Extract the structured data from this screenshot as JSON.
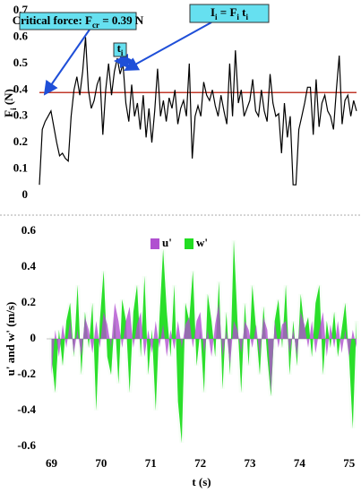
{
  "chart_data": [
    {
      "type": "line",
      "ylabel": [
        "F",
        "i",
        " (N)"
      ],
      "annotations": [
        [
          "Critical force: F",
          "cr",
          " = 0.39 N"
        ],
        [
          "I",
          "i",
          " = F",
          "i",
          " t",
          "i"
        ],
        [
          "t",
          "i"
        ]
      ],
      "threshold": 0.39,
      "threshold_color": "#c0392b",
      "color": "#000000",
      "xlim": [
        68.6,
        75.2
      ],
      "ylim": [
        0,
        0.7
      ],
      "yticks": [
        0,
        0.1,
        0.2,
        0.3,
        0.4,
        0.5,
        0.6,
        0.7
      ],
      "x": [
        68.6,
        68.66,
        68.72,
        68.78,
        68.84,
        68.9,
        68.96,
        69.02,
        69.08,
        69.14,
        69.2,
        69.26,
        69.32,
        69.38,
        69.44,
        69.5,
        69.56,
        69.62,
        69.68,
        69.74,
        69.8,
        69.86,
        69.92,
        69.98,
        70.04,
        70.1,
        70.16,
        70.22,
        70.28,
        70.34,
        70.4,
        70.46,
        70.52,
        70.58,
        70.64,
        70.7,
        70.76,
        70.82,
        70.88,
        70.94,
        71,
        71.06,
        71.12,
        71.18,
        71.24,
        71.3,
        71.36,
        71.42,
        71.48,
        71.54,
        71.6,
        71.66,
        71.72,
        71.78,
        71.84,
        71.9,
        71.96,
        72.02,
        72.08,
        72.14,
        72.2,
        72.26,
        72.32,
        72.38,
        72.44,
        72.5,
        72.56,
        72.62,
        72.68,
        72.74,
        72.8,
        72.86,
        72.92,
        72.98,
        73.04,
        73.1,
        73.16,
        73.22,
        73.28,
        73.34,
        73.4,
        73.46,
        73.52,
        73.58,
        73.64,
        73.7,
        73.76,
        73.82,
        73.88,
        73.94,
        74,
        74.06,
        74.12,
        74.18,
        74.24,
        74.3,
        74.36,
        74.42,
        74.48,
        74.54,
        74.6,
        74.66,
        74.72,
        74.78,
        74.84,
        74.9,
        74.96,
        75.02,
        75.08,
        75.14,
        75.2
      ],
      "values": [
        0.04,
        0.25,
        0.28,
        0.3,
        0.32,
        0.26,
        0.2,
        0.15,
        0.16,
        0.14,
        0.13,
        0.3,
        0.4,
        0.45,
        0.38,
        0.47,
        0.6,
        0.4,
        0.33,
        0.36,
        0.42,
        0.45,
        0.23,
        0.4,
        0.5,
        0.38,
        0.47,
        0.52,
        0.46,
        0.5,
        0.35,
        0.28,
        0.42,
        0.3,
        0.35,
        0.25,
        0.38,
        0.22,
        0.33,
        0.2,
        0.32,
        0.48,
        0.3,
        0.36,
        0.28,
        0.37,
        0.33,
        0.4,
        0.27,
        0.33,
        0.36,
        0.3,
        0.5,
        0.14,
        0.3,
        0.34,
        0.3,
        0.43,
        0.38,
        0.36,
        0.4,
        0.34,
        0.3,
        0.38,
        0.32,
        0.27,
        0.5,
        0.3,
        0.55,
        0.35,
        0.4,
        0.3,
        0.33,
        0.36,
        0.44,
        0.32,
        0.3,
        0.4,
        0.32,
        0.28,
        0.46,
        0.35,
        0.3,
        0.31,
        0.16,
        0.35,
        0.22,
        0.3,
        0.04,
        0.04,
        0.25,
        0.3,
        0.35,
        0.41,
        0.41,
        0.23,
        0.44,
        0.26,
        0.35,
        0.38,
        0.32,
        0.3,
        0.25,
        0.4,
        0.53,
        0.27,
        0.36,
        0.38,
        0.3,
        0.36,
        0.32
      ]
    },
    {
      "type": "area",
      "xlabel": "t (s)",
      "ylabel": "u' and w' (m/s)",
      "xlim": [
        68.9,
        75.15
      ],
      "xticks": [
        69,
        70,
        71,
        72,
        73,
        74,
        75
      ],
      "ylim": [
        -0.6,
        0.6
      ],
      "yticks": [
        -0.6,
        -0.4,
        -0.2,
        0,
        0.2,
        0.4,
        0.6
      ],
      "x": [
        69,
        69.075,
        69.15,
        69.225,
        69.3,
        69.375,
        69.45,
        69.525,
        69.6,
        69.675,
        69.75,
        69.825,
        69.9,
        69.975,
        70.05,
        70.125,
        70.2,
        70.275,
        70.35,
        70.425,
        70.5,
        70.575,
        70.65,
        70.725,
        70.8,
        70.875,
        70.95,
        71.025,
        71.1,
        71.175,
        71.25,
        71.325,
        71.4,
        71.475,
        71.55,
        71.625,
        71.7,
        71.775,
        71.85,
        71.925,
        72,
        72.075,
        72.15,
        72.225,
        72.3,
        72.375,
        72.45,
        72.525,
        72.6,
        72.675,
        72.75,
        72.825,
        72.9,
        72.975,
        73.05,
        73.125,
        73.2,
        73.275,
        73.35,
        73.425,
        73.5,
        73.575,
        73.65,
        73.725,
        73.8,
        73.875,
        73.95,
        74.025,
        74.1,
        74.175,
        74.25,
        74.325,
        74.4,
        74.475,
        74.55,
        74.625,
        74.7,
        74.775,
        74.85,
        74.925,
        75,
        75.075,
        75.15
      ],
      "series": [
        {
          "name": "w'",
          "color": "#22dd22",
          "values": [
            -0.1,
            -0.3,
            0.05,
            -0.15,
            0.1,
            0.2,
            -0.1,
            0.3,
            -0.2,
            0.15,
            -0.05,
            0.2,
            -0.4,
            0.1,
            0.38,
            -0.1,
            -0.2,
            0.12,
            -0.25,
            0.22,
            0.1,
            -0.3,
            0.15,
            0.3,
            -0.1,
            0.35,
            -0.2,
            0.05,
            -0.4,
            0.1,
            0.5,
            0.15,
            -0.1,
            0.3,
            -0.35,
            -0.58,
            0.2,
            0.1,
            0.38,
            -0.15,
            0.05,
            -0.3,
            0.25,
            0.1,
            -0.1,
            0.32,
            -0.28,
            0.15,
            -0.2,
            0.55,
            0.1,
            -0.3,
            0.2,
            -0.15,
            0.3,
            0.05,
            -0.2,
            0.18,
            -0.1,
            -0.32,
            0.1,
            0.22,
            -0.05,
            0.3,
            -0.2,
            0.1,
            -0.15,
            0.25,
            0.05,
            0.12,
            -0.1,
            0.2,
            0.3,
            -0.2,
            0.1,
            -0.05,
            0.15,
            -0.1,
            0.05,
            0.2,
            -0.1,
            -0.5,
            0.1
          ]
        },
        {
          "name": "u'",
          "color": "#b050d0",
          "values": [
            -0.2,
            0.05,
            -0.1,
            0.08,
            -0.05,
            0.1,
            -0.08,
            0.05,
            -0.1,
            0.12,
            0.05,
            -0.08,
            0.1,
            -0.05,
            0.15,
            0.08,
            -0.05,
            0.2,
            0.1,
            -0.05,
            0.1,
            0.18,
            -0.05,
            0.08,
            0.15,
            -0.1,
            0.05,
            -0.08,
            0.1,
            -0.05,
            0.08,
            -0.1,
            0.05,
            -0.06,
            0.1,
            -0.05,
            0.08,
            0.12,
            -0.05,
            0.1,
            0.15,
            -0.08,
            0.05,
            -0.1,
            0.08,
            0.2,
            -0.1,
            0.05,
            -0.15,
            0.1,
            0.05,
            -0.08,
            0.1,
            0.05,
            -0.05,
            0.08,
            -0.1,
            0.12,
            0.05,
            -0.3,
            0.1,
            -0.05,
            0.08,
            0.1,
            -0.08,
            0.05,
            -0.1,
            0.15,
            0.08,
            -0.05,
            0.1,
            -0.08,
            0.05,
            0.15,
            -0.1,
            0.08,
            -0.05,
            0.1,
            -0.08,
            0.05,
            -0.1,
            0.05,
            -0.05
          ]
        }
      ]
    }
  ]
}
